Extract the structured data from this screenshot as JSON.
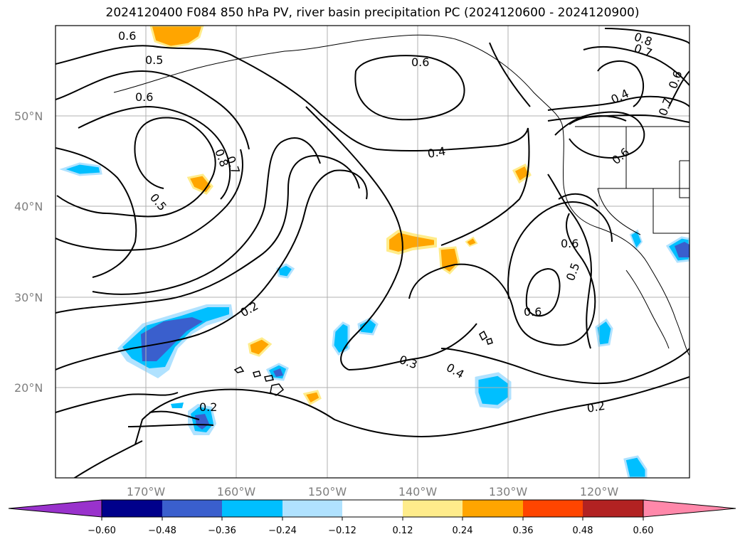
{
  "title": "2024120400 F084 850 hPa PV, river basin precipitation PC (2024120600 - 2024120900)",
  "map": {
    "lat_labels": [
      "50°N",
      "40°N",
      "30°N",
      "20°N"
    ],
    "lon_labels": [
      "170°W",
      "160°W",
      "150°W",
      "140°W",
      "130°W",
      "120°W"
    ],
    "contour_labels": [
      "0.6",
      "0.5",
      "0.6",
      "0.6",
      "0.8",
      "0.7",
      "0.8",
      "0.7",
      "0.6",
      "0.4",
      "0.7",
      "0.6",
      "0.4",
      "0.5",
      "0.6",
      "0.5",
      "0.6",
      "0.2",
      "0.3",
      "0.4",
      "0.2",
      "0.2"
    ]
  },
  "colorbar": {
    "ticks": [
      "−0.60",
      "−0.48",
      "−0.36",
      "−0.24",
      "−0.12",
      "0.12",
      "0.24",
      "0.36",
      "0.48",
      "0.60"
    ],
    "colors": [
      "#9932cc",
      "#00008b",
      "#3a5fcd",
      "#00bfff",
      "#b0e2ff",
      "#ffffff",
      "#ffec8b",
      "#ffa500",
      "#ff4500",
      "#b22222",
      "#ff88aa"
    ]
  }
}
